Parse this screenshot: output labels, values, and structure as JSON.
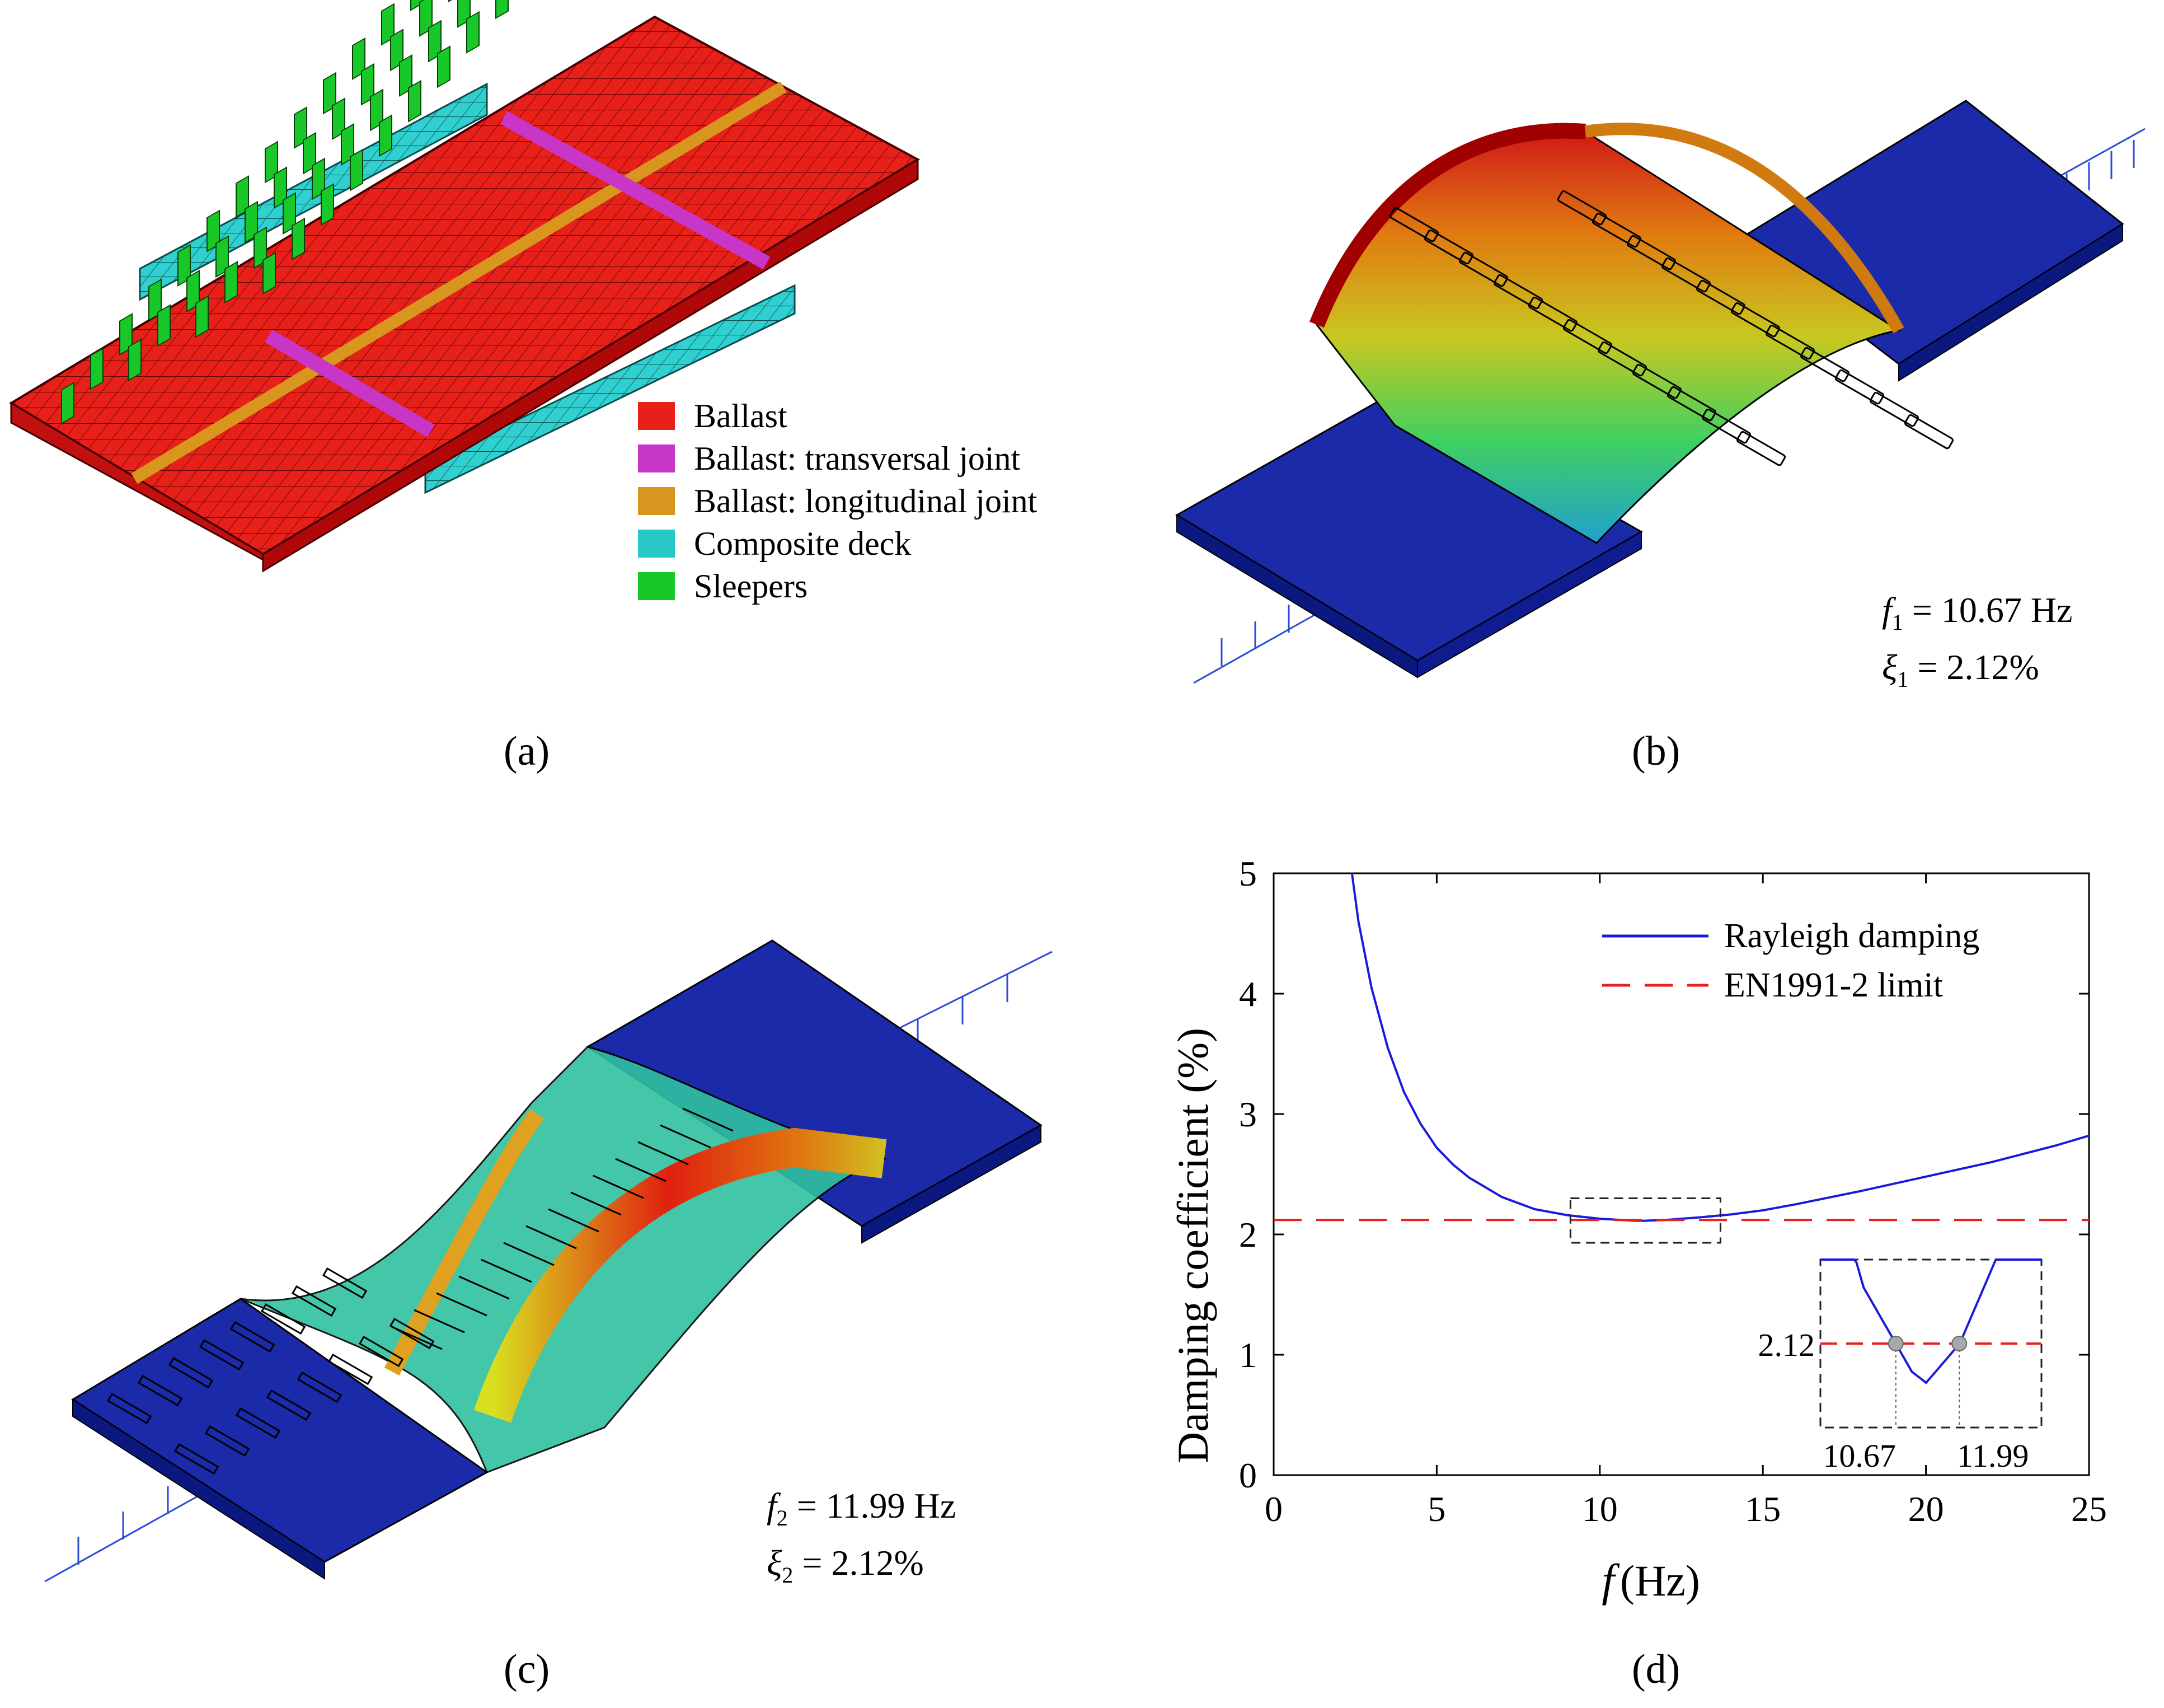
{
  "panel_a": {
    "caption": "(a)",
    "legend": [
      {
        "label": "Ballast",
        "color": "#e8201a"
      },
      {
        "label": "Ballast: transversal joint",
        "color": "#c836c8"
      },
      {
        "label": "Ballast: longitudinal joint",
        "color": "#d8961e"
      },
      {
        "label": "Composite deck",
        "color": "#28c8c8"
      },
      {
        "label": "Sleepers",
        "color": "#18c828"
      }
    ]
  },
  "panel_b": {
    "caption": "(b)",
    "freq_symbol": "f",
    "freq_sub": "1",
    "freq_value": "= 10.67 Hz",
    "damp_symbol": "ξ",
    "damp_sub": "1",
    "damp_value": "= 2.12%"
  },
  "panel_c": {
    "caption": "(c)",
    "freq_symbol": "f",
    "freq_sub": "2",
    "freq_value": "= 11.99 Hz",
    "damp_symbol": "ξ",
    "damp_sub": "2",
    "damp_value": "= 2.12%"
  },
  "panel_d": {
    "caption": "(d)"
  },
  "chart_data": {
    "type": "line",
    "xlabel_symbol": "f",
    "xlabel_unit": "(Hz)",
    "ylabel": "Damping coefficient  (%)",
    "xlim": [
      0,
      25
    ],
    "ylim": [
      0,
      5
    ],
    "xticks": [
      0,
      5,
      10,
      15,
      20,
      25
    ],
    "yticks": [
      0,
      1,
      2,
      3,
      4,
      5
    ],
    "legend_position": "top-right",
    "series": [
      {
        "name": "Rayleigh damping",
        "style": "solid",
        "color": "#1a1adc",
        "x": [
          2.4,
          2.6,
          3,
          3.5,
          4,
          4.5,
          5,
          5.5,
          6,
          7,
          8,
          9,
          10,
          10.67,
          11,
          11.3,
          12,
          13,
          14,
          15,
          16,
          18,
          20,
          22,
          24,
          25
        ],
        "y": [
          5.0,
          4.6,
          4.05,
          3.55,
          3.18,
          2.92,
          2.72,
          2.58,
          2.47,
          2.31,
          2.21,
          2.16,
          2.13,
          2.12,
          2.115,
          2.113,
          2.12,
          2.14,
          2.165,
          2.2,
          2.25,
          2.36,
          2.48,
          2.6,
          2.74,
          2.82
        ]
      },
      {
        "name": "EN1991-2 limit",
        "style": "dashed",
        "color": "#e62020",
        "x": [
          0,
          25
        ],
        "y": [
          2.12,
          2.12
        ]
      }
    ],
    "zoom_box": {
      "x": [
        9.1,
        13.7
      ],
      "y": [
        1.93,
        2.3
      ]
    },
    "inset": {
      "xlim": [
        9.1,
        13.7
      ],
      "ylim": [
        2.105,
        2.135
      ],
      "points": [
        {
          "x": 10.67,
          "y": 2.12
        },
        {
          "x": 11.99,
          "y": 2.12
        }
      ],
      "labels": {
        "y": "2.12",
        "x1": "10.67",
        "x2": "11.99"
      }
    }
  }
}
